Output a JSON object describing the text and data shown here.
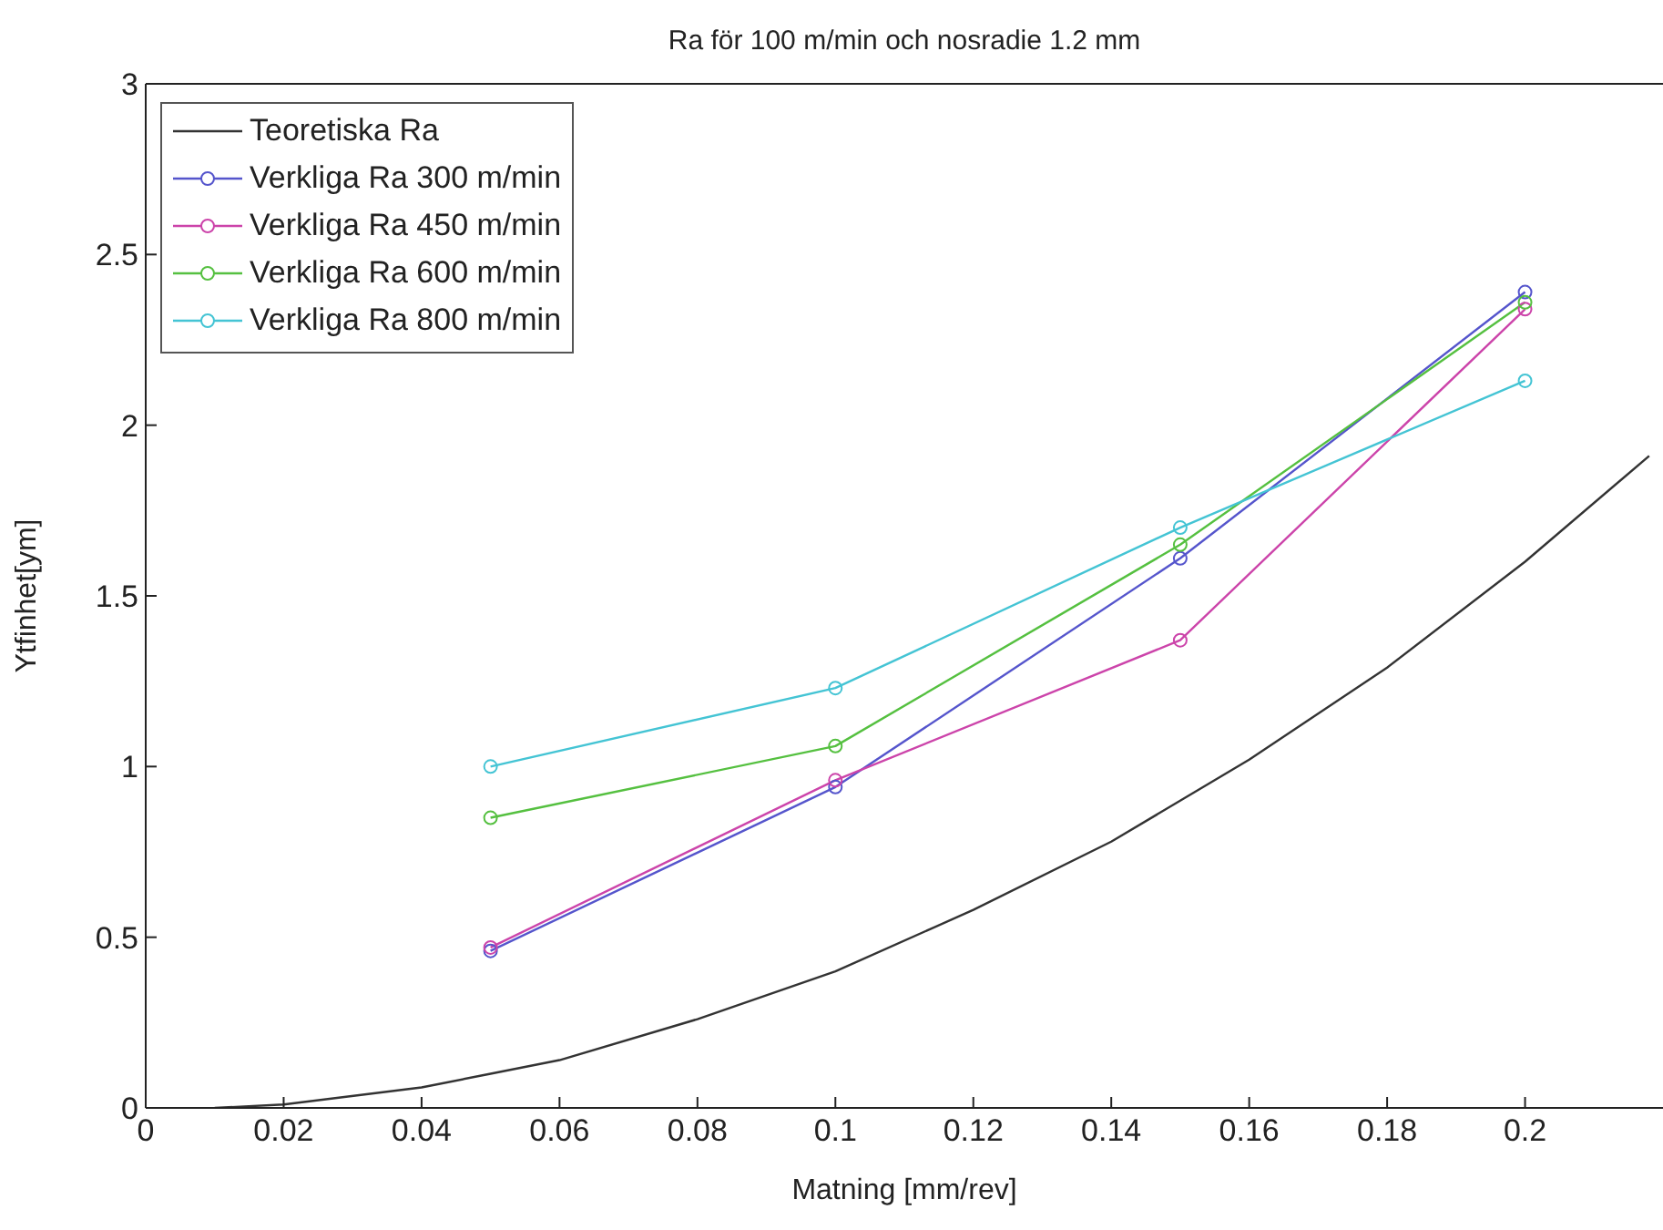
{
  "chart_data": {
    "type": "line",
    "title": "Ra för 100 m/min och nosradie 1.2 mm",
    "xlabel": "Matning [mm/rev]",
    "ylabel": "Ytfinhet[ym]",
    "xlim": [
      0,
      0.22
    ],
    "xticks": [
      0,
      0.02,
      0.04,
      0.06,
      0.08,
      0.1,
      0.12,
      0.14,
      0.16,
      0.18,
      0.2
    ],
    "ylim": [
      0,
      3
    ],
    "yticks": [
      0,
      0.5,
      1,
      1.5,
      2,
      2.5,
      3
    ],
    "grid": false,
    "legend": "top left",
    "line_style": "solid",
    "series": [
      {
        "name": "Teoretiska Ra",
        "color": "#333333",
        "marker": "none",
        "x": [
          0.01,
          0.02,
          0.04,
          0.05,
          0.06,
          0.08,
          0.1,
          0.12,
          0.14,
          0.15,
          0.16,
          0.18,
          0.2,
          0.218
        ],
        "values": [
          0,
          0.01,
          0.06,
          0.1,
          0.14,
          0.26,
          0.4,
          0.58,
          0.78,
          0.9,
          1.02,
          1.29,
          1.6,
          1.91
        ]
      },
      {
        "name": "Verkliga Ra 300 m/min",
        "color": "#5555cc",
        "marker": "circle",
        "x": [
          0.05,
          0.1,
          0.15,
          0.2
        ],
        "values": [
          0.46,
          0.94,
          1.61,
          2.39
        ]
      },
      {
        "name": "Verkliga Ra 450 m/min",
        "color": "#cc44aa",
        "marker": "circle",
        "x": [
          0.05,
          0.1,
          0.15,
          0.2
        ],
        "values": [
          0.47,
          0.96,
          1.37,
          2.34
        ]
      },
      {
        "name": "Verkliga Ra 600 m/min",
        "color": "#55c040",
        "marker": "circle",
        "x": [
          0.05,
          0.1,
          0.15,
          0.2
        ],
        "values": [
          0.85,
          1.06,
          1.65,
          2.36
        ]
      },
      {
        "name": "Verkliga Ra 800 m/min",
        "color": "#44c4d4",
        "marker": "circle",
        "x": [
          0.05,
          0.1,
          0.15,
          0.2
        ],
        "values": [
          1.0,
          1.23,
          1.7,
          2.13
        ]
      }
    ]
  }
}
